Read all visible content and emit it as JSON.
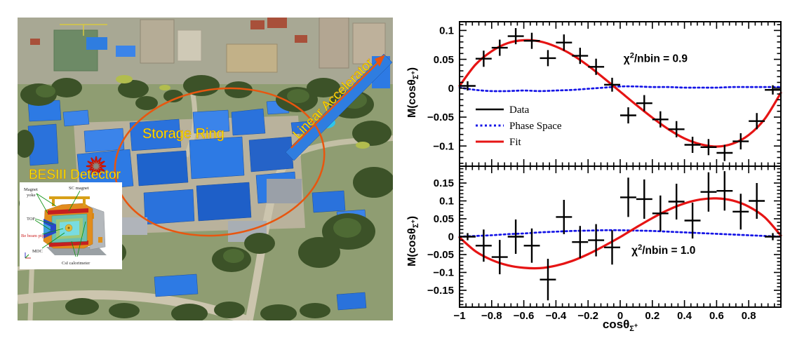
{
  "photo": {
    "labels": {
      "linear_accelerator": "Linear Accelerator",
      "storage_ring": "Storage Ring",
      "besiii_detector": "BESIII Detector"
    },
    "label_color": "#f6f600",
    "ring_color": "#e8560f",
    "roof_color": "#2d7ae4",
    "inset": {
      "labels": {
        "magnet_yoke_line1": "Magnet",
        "magnet_yoke_line2": "yoke",
        "sc_magnet": "SC magnet",
        "tof": "TOF",
        "beam_pipe": "Be beam pipe",
        "mdc": "MDC",
        "csi": "CsI calorimeter"
      },
      "beam_pipe_color": "#cc2020"
    }
  },
  "chart_data": [
    {
      "type": "scatter",
      "panel": "top",
      "ylabel": {
        "prefix": "M(cosθ",
        "sub": "Σ",
        "sup": "+",
        "suffix": ")"
      },
      "xlim": [
        -1,
        1
      ],
      "ylim": [
        -0.135,
        0.115
      ],
      "yticks": [
        0.1,
        0.05,
        0,
        -0.05,
        -0.1
      ],
      "ytick_labels": [
        "0.1",
        "0.05",
        "0",
        "−0.05",
        "−0.1"
      ],
      "grid": false,
      "annotation": {
        "symbol": "χ",
        "exponent": "2",
        "rest": "/nbin = 0.9",
        "x": 0.22,
        "y": 0.045
      },
      "legend": {
        "items": [
          {
            "label": "Data",
            "color": "#000000",
            "style": "solid"
          },
          {
            "label": "Phase Space",
            "color": "#1414e6",
            "style": "dashed"
          },
          {
            "label": "Fit",
            "color": "#e61414",
            "style": "solid"
          }
        ]
      },
      "series": [
        {
          "name": "Phase Space",
          "type": "curve",
          "style": "dashed",
          "color": "#1414e6",
          "x": [
            -1,
            -0.9,
            -0.8,
            -0.7,
            -0.6,
            -0.5,
            -0.4,
            -0.3,
            -0.2,
            -0.1,
            0,
            0.1,
            0.2,
            0.3,
            0.4,
            0.5,
            0.6,
            0.7,
            0.8,
            0.9,
            1
          ],
          "y": [
            0.001,
            -0.003,
            -0.005,
            -0.005,
            -0.004,
            -0.005,
            -0.004,
            -0.003,
            -0.001,
            0.001,
            0.003,
            0.003,
            0.002,
            0.002,
            0.001,
            0.001,
            0.001,
            0.002,
            0.002,
            0.002,
            0.002
          ]
        },
        {
          "name": "Fit",
          "type": "curve",
          "style": "solid",
          "color": "#e61414",
          "x": [
            -1,
            -0.9,
            -0.8,
            -0.7,
            -0.6,
            -0.5,
            -0.4,
            -0.3,
            -0.2,
            -0.1,
            0,
            0.1,
            0.2,
            0.3,
            0.4,
            0.5,
            0.6,
            0.7,
            0.8,
            0.9,
            1
          ],
          "y": [
            0.004,
            0.041,
            0.064,
            0.078,
            0.083,
            0.081,
            0.072,
            0.058,
            0.039,
            0.017,
            -0.006,
            -0.029,
            -0.051,
            -0.071,
            -0.087,
            -0.097,
            -0.101,
            -0.096,
            -0.081,
            -0.053,
            -0.008
          ]
        },
        {
          "name": "Data",
          "type": "errorbar",
          "color": "#000000",
          "xerr": 0.05,
          "x": [
            -0.95,
            -0.85,
            -0.75,
            -0.65,
            -0.55,
            -0.45,
            -0.35,
            -0.25,
            -0.15,
            -0.05,
            0.05,
            0.15,
            0.25,
            0.35,
            0.45,
            0.55,
            0.65,
            0.75,
            0.85,
            0.95
          ],
          "y": [
            0.004,
            0.051,
            0.07,
            0.09,
            0.082,
            0.052,
            0.079,
            0.056,
            0.037,
            0.006,
            -0.047,
            -0.026,
            -0.054,
            -0.071,
            -0.098,
            -0.102,
            -0.112,
            -0.092,
            -0.057,
            -0.003
          ],
          "yerr": [
            0.008,
            0.014,
            0.014,
            0.014,
            0.014,
            0.014,
            0.014,
            0.014,
            0.014,
            0.012,
            0.014,
            0.014,
            0.014,
            0.014,
            0.014,
            0.014,
            0.014,
            0.014,
            0.014,
            0.008
          ]
        }
      ]
    },
    {
      "type": "scatter",
      "panel": "bottom",
      "ylabel": {
        "prefix": "M(cosθ",
        "sub": "Σ",
        "sup": "+",
        "suffix": ")"
      },
      "xlabel": {
        "prefix": "cosθ",
        "sub": "Σ",
        "sup": "+"
      },
      "xlim": [
        -1,
        1
      ],
      "ylim": [
        -0.197,
        0.197
      ],
      "yticks": [
        0.15,
        0.1,
        0.05,
        0,
        -0.05,
        -0.1,
        -0.15
      ],
      "ytick_labels": [
        "0.15",
        "0.1",
        "0.05",
        "0",
        "−0.05",
        "−0.1",
        "−0.15"
      ],
      "xticks": [
        -1,
        -0.8,
        -0.6,
        -0.4,
        -0.2,
        0,
        0.2,
        0.4,
        0.6,
        0.8
      ],
      "xtick_labels": [
        "−1",
        "−0.8",
        "−0.6",
        "−0.4",
        "−0.2",
        "0",
        "0.2",
        "0.4",
        "0.6",
        "0.8"
      ],
      "grid": false,
      "annotation": {
        "symbol": "χ",
        "exponent": "2",
        "rest": "/nbin = 1.0",
        "x": 0.27,
        "y": -0.048
      },
      "series": [
        {
          "name": "Phase Space",
          "type": "curve",
          "style": "dashed",
          "color": "#1414e6",
          "x": [
            -1,
            -0.9,
            -0.8,
            -0.7,
            -0.6,
            -0.5,
            -0.4,
            -0.3,
            -0.2,
            -0.1,
            0,
            0.1,
            0.2,
            0.3,
            0.4,
            0.5,
            0.6,
            0.7,
            0.8,
            0.9,
            1
          ],
          "y": [
            0,
            0.002,
            0.004,
            0.007,
            0.009,
            0.012,
            0.014,
            0.016,
            0.017,
            0.018,
            0.018,
            0.017,
            0.016,
            0.014,
            0.012,
            0.01,
            0.008,
            0.006,
            0.004,
            0.002,
            0
          ]
        },
        {
          "name": "Fit",
          "type": "curve",
          "style": "solid",
          "color": "#e61414",
          "x": [
            -1,
            -0.9,
            -0.8,
            -0.7,
            -0.6,
            -0.5,
            -0.4,
            -0.3,
            -0.2,
            -0.1,
            0,
            0.1,
            0.2,
            0.3,
            0.4,
            0.5,
            0.6,
            0.7,
            0.8,
            0.9,
            1
          ],
          "y": [
            -0.002,
            -0.041,
            -0.065,
            -0.08,
            -0.087,
            -0.088,
            -0.081,
            -0.068,
            -0.049,
            -0.026,
            -0.001,
            0.026,
            0.052,
            0.075,
            0.093,
            0.104,
            0.107,
            0.101,
            0.084,
            0.054,
            0.003
          ]
        },
        {
          "name": "Data",
          "type": "errorbar",
          "color": "#000000",
          "xerr": 0.05,
          "x": [
            -0.95,
            -0.85,
            -0.75,
            -0.65,
            -0.55,
            -0.45,
            -0.35,
            -0.25,
            -0.15,
            -0.05,
            0.05,
            0.15,
            0.25,
            0.35,
            0.45,
            0.55,
            0.65,
            0.75,
            0.85,
            0.95
          ],
          "y": [
            0,
            -0.025,
            -0.057,
            0,
            -0.025,
            -0.12,
            0.055,
            -0.015,
            -0.01,
            -0.03,
            0.11,
            0.105,
            0.065,
            0.098,
            0.045,
            0.125,
            0.128,
            0.07,
            0.1,
            0
          ],
          "yerr": [
            0.01,
            0.045,
            0.048,
            0.048,
            0.048,
            0.058,
            0.048,
            0.045,
            0.045,
            0.048,
            0.055,
            0.055,
            0.05,
            0.05,
            0.05,
            0.055,
            0.055,
            0.05,
            0.05,
            0.01
          ]
        }
      ]
    }
  ]
}
